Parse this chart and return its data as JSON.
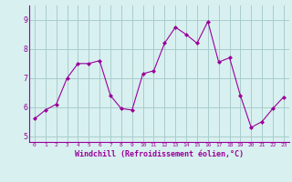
{
  "x": [
    0,
    1,
    2,
    3,
    4,
    5,
    6,
    7,
    8,
    9,
    10,
    11,
    12,
    13,
    14,
    15,
    16,
    17,
    18,
    19,
    20,
    21,
    22,
    23
  ],
  "y": [
    5.6,
    5.9,
    6.1,
    7.0,
    7.5,
    7.5,
    7.6,
    6.4,
    5.95,
    5.9,
    7.15,
    7.25,
    8.2,
    8.75,
    8.5,
    8.2,
    8.95,
    7.55,
    7.7,
    6.4,
    5.3,
    5.5,
    5.95,
    6.35
  ],
  "line_color": "#990099",
  "marker": "D",
  "marker_size": 2,
  "bg_color": "#d8f0f0",
  "grid_color": "#aacccc",
  "xlabel": "Windchill (Refroidissement éolien,°C)",
  "xlabel_color": "#990099",
  "tick_color": "#990099",
  "xlim": [
    -0.5,
    23.5
  ],
  "ylim": [
    4.8,
    9.5
  ],
  "yticks": [
    5,
    6,
    7,
    8,
    9
  ],
  "xticks": [
    0,
    1,
    2,
    3,
    4,
    5,
    6,
    7,
    8,
    9,
    10,
    11,
    12,
    13,
    14,
    15,
    16,
    17,
    18,
    19,
    20,
    21,
    22,
    23
  ]
}
